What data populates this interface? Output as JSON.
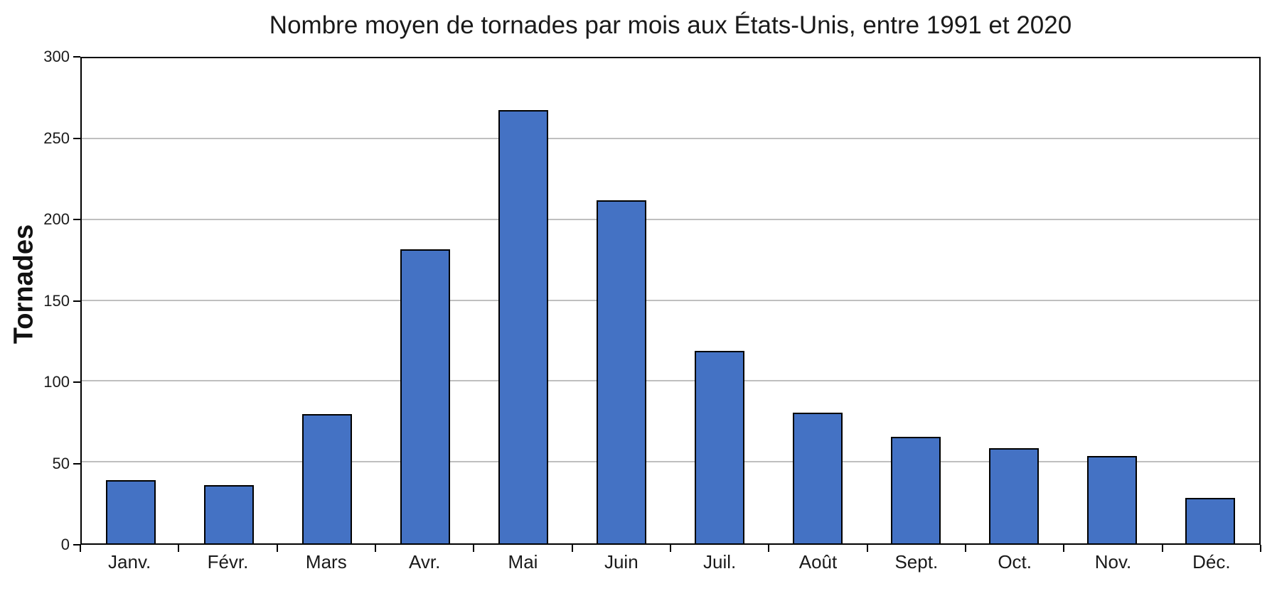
{
  "chart_data": {
    "type": "bar",
    "title": "Nombre moyen de tornades par mois aux États-Unis, entre 1991 et 2020",
    "ylabel": "Tornades",
    "xlabel": "",
    "categories": [
      "Janv.",
      "Févr.",
      "Mars",
      "Avr.",
      "Mai",
      "Juin",
      "Juil.",
      "Août",
      "Sept.",
      "Oct.",
      "Nov.",
      "Déc."
    ],
    "values": [
      39,
      36,
      80,
      182,
      268,
      212,
      119,
      81,
      66,
      59,
      54,
      28
    ],
    "ylim": [
      0,
      300
    ],
    "yticks": [
      0,
      50,
      100,
      150,
      200,
      250,
      300
    ],
    "grid": "horizontal",
    "legend_position": "none",
    "colors": {
      "bar_fill": "#4472C4",
      "bar_border": "#000000",
      "gridline": "#BFBFBF",
      "axis": "#000000",
      "text": "#1A1A1A"
    }
  }
}
